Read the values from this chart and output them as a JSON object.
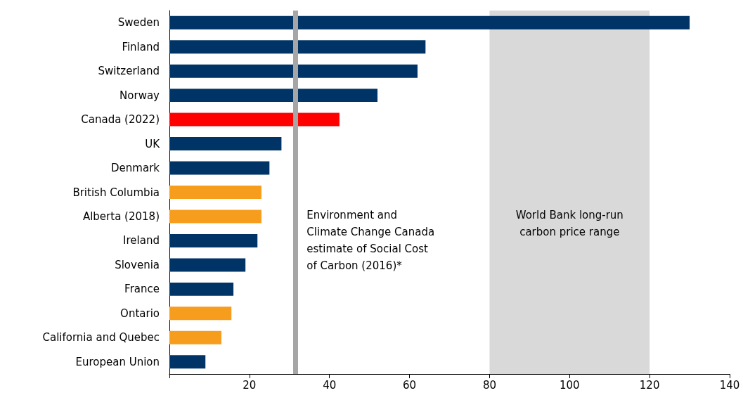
{
  "chart_data": {
    "type": "bar",
    "orientation": "horizontal",
    "categories": [
      "Sweden",
      "Finland",
      "Switzerland",
      "Norway",
      "Canada (2022)",
      "UK",
      "Denmark",
      "British Columbia",
      "Alberta (2018)",
      "Ireland",
      "Slovenia",
      "France",
      "Ontario",
      "California and Quebec",
      "European Union"
    ],
    "values": [
      130,
      64,
      62,
      52,
      42.5,
      28,
      25,
      23,
      23,
      22,
      19,
      16,
      15.5,
      13,
      9
    ],
    "colors": [
      "#003366",
      "#003366",
      "#003366",
      "#003366",
      "#ff0000",
      "#003366",
      "#003366",
      "#f79d1e",
      "#f79d1e",
      "#003366",
      "#003366",
      "#003366",
      "#f79d1e",
      "#f79d1e",
      "#003366"
    ],
    "xlim": [
      0,
      140
    ],
    "xticks": [
      {
        "value": 0,
        "label": null
      },
      20,
      40,
      60,
      80,
      100,
      120,
      140
    ],
    "grid": false,
    "ref_lines": [
      {
        "axis": "x",
        "value": 31.5,
        "label": "Environment and Climate Change Canada estimate of Social Cost of Carbon (2016)*",
        "color": "#a6a6a6"
      }
    ],
    "bands": [
      {
        "axis": "x",
        "from": 80,
        "to": 120,
        "label": "World Bank long-run carbon price range",
        "color": "#d9d9d9"
      }
    ]
  }
}
